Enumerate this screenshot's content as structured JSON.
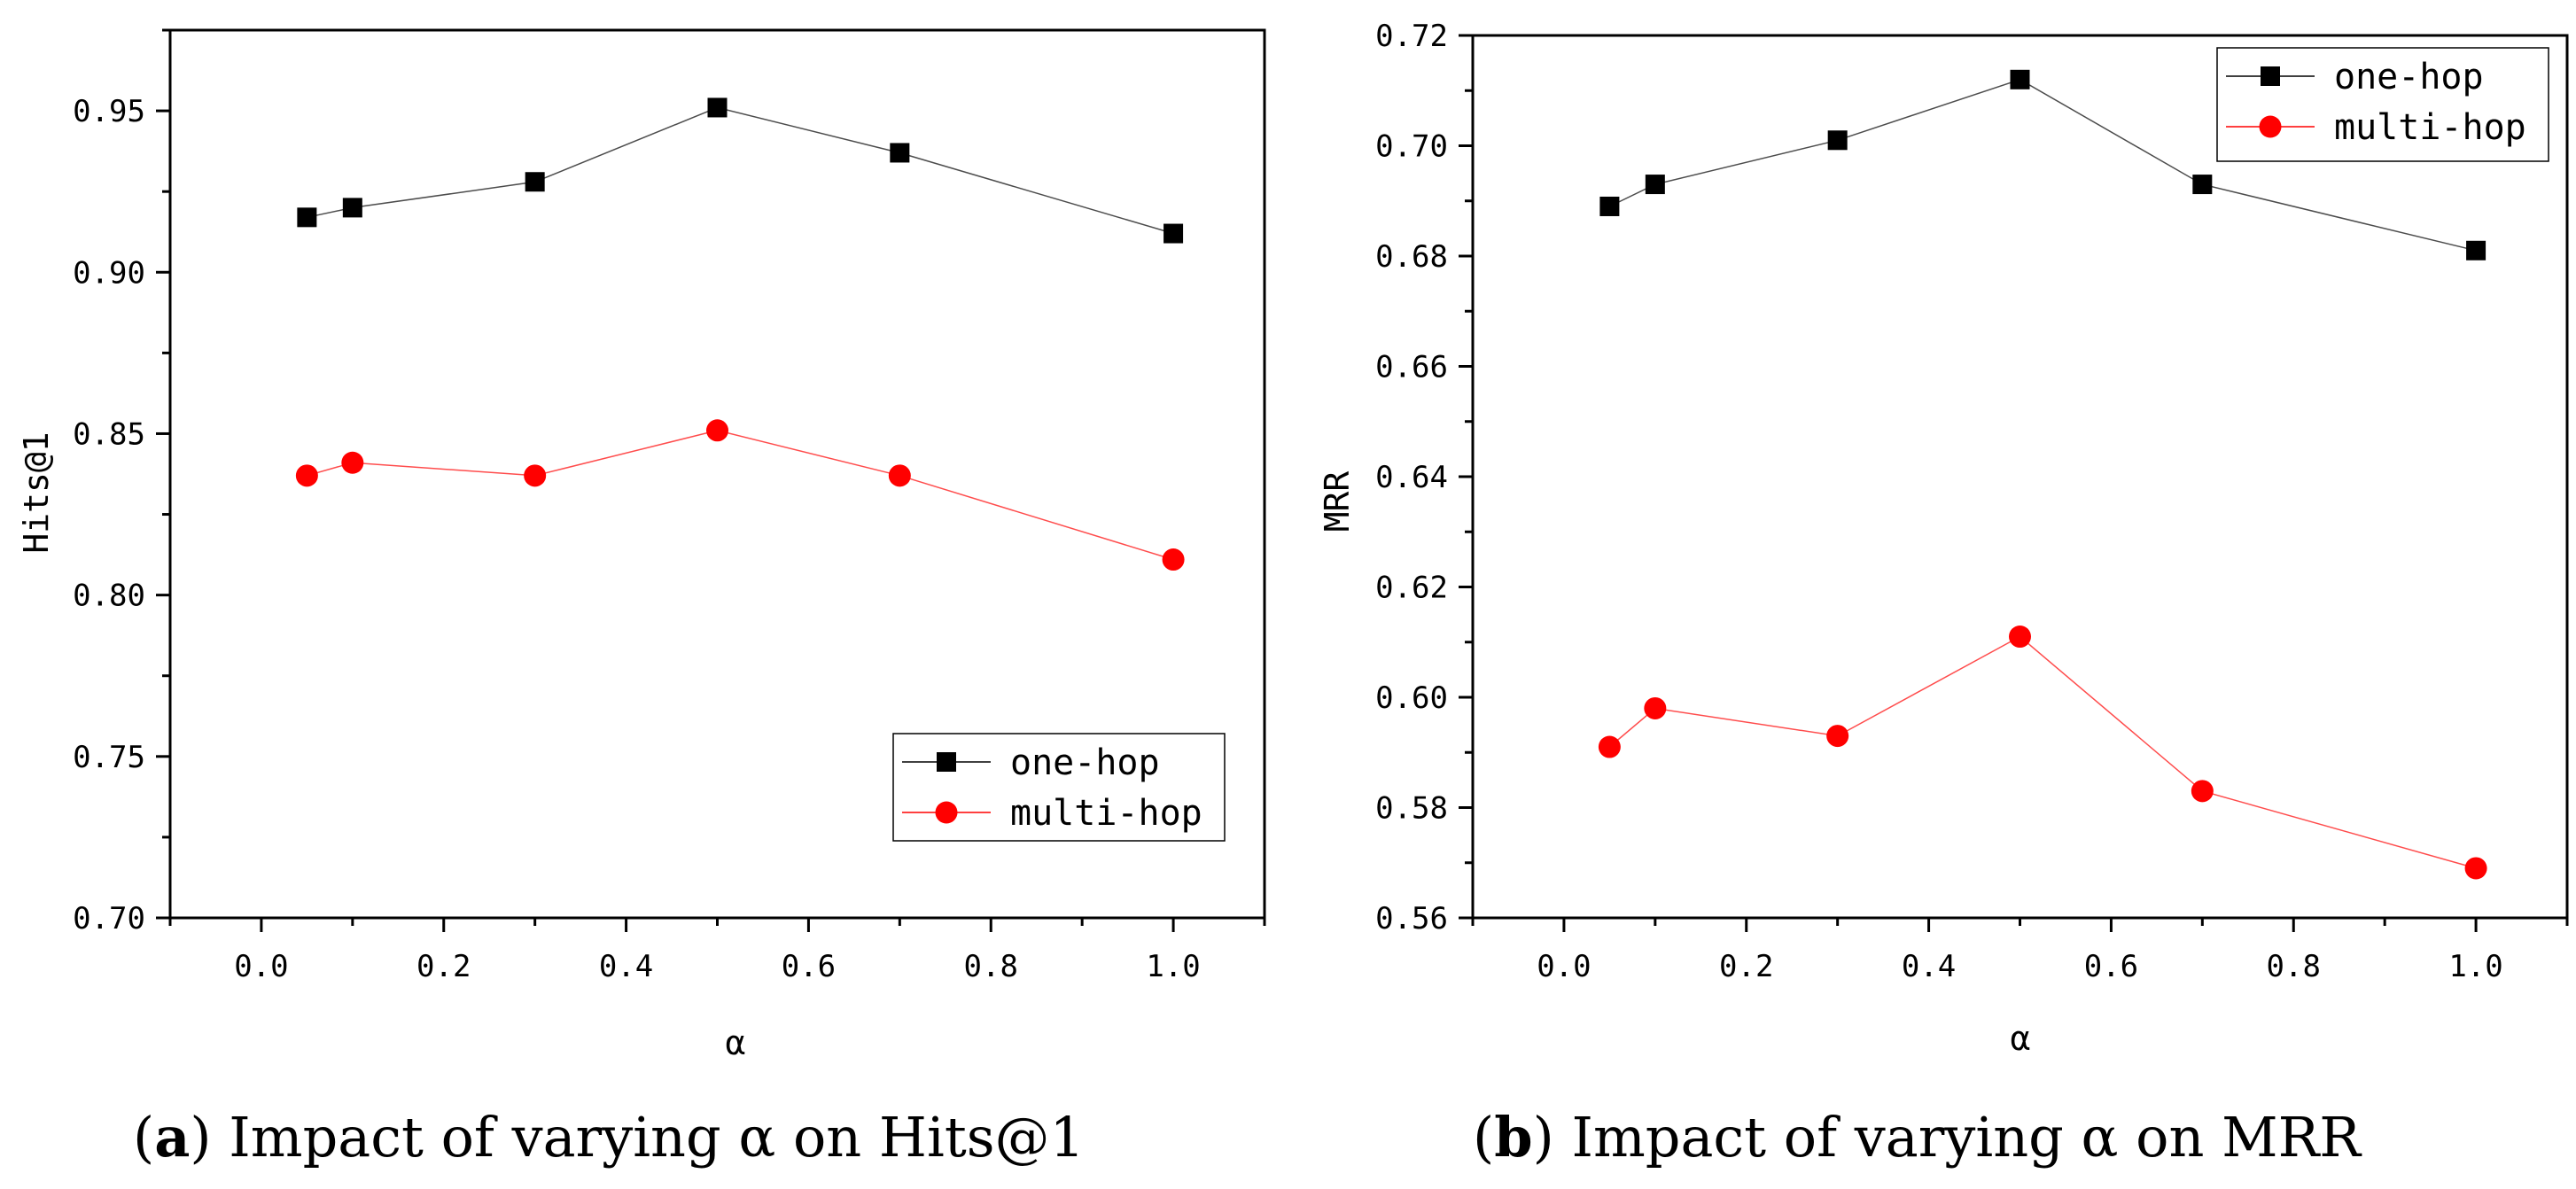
{
  "chart_data": [
    {
      "type": "line",
      "panel_letter": "a",
      "caption": " Impact of varying α on Hits@1",
      "xlabel": "α",
      "ylabel": "Hits@1",
      "xlim": [
        -0.1,
        1.1
      ],
      "ylim": [
        0.7,
        0.975
      ],
      "xticks": [
        0.0,
        0.2,
        0.4,
        0.6,
        0.8,
        1.0
      ],
      "xtick_labels": [
        "0.0",
        "0.2",
        "0.4",
        "0.6",
        "0.8",
        "1.0"
      ],
      "yticks": [
        0.7,
        0.75,
        0.8,
        0.85,
        0.9,
        0.95
      ],
      "ytick_labels": [
        "0.70",
        "0.75",
        "0.80",
        "0.85",
        "0.90",
        "0.95"
      ],
      "x": [
        0.05,
        0.1,
        0.3,
        0.5,
        0.7,
        1.0
      ],
      "series": [
        {
          "name": "one-hop",
          "color": "#000000",
          "marker": "square",
          "values": [
            0.917,
            0.92,
            0.928,
            0.951,
            0.937,
            0.912
          ]
        },
        {
          "name": "multi-hop",
          "color": "#ff0000",
          "marker": "circle",
          "values": [
            0.837,
            0.841,
            0.837,
            0.851,
            0.837,
            0.811
          ]
        }
      ],
      "legend": "bottom-right"
    },
    {
      "type": "line",
      "panel_letter": "b",
      "caption": " Impact of varying α on MRR",
      "xlabel": "α",
      "ylabel": "MRR",
      "xlim": [
        -0.1,
        1.1
      ],
      "ylim": [
        0.56,
        0.72
      ],
      "xticks": [
        0.0,
        0.2,
        0.4,
        0.6,
        0.8,
        1.0
      ],
      "xtick_labels": [
        "0.0",
        "0.2",
        "0.4",
        "0.6",
        "0.8",
        "1.0"
      ],
      "yticks": [
        0.56,
        0.58,
        0.6,
        0.62,
        0.64,
        0.66,
        0.68,
        0.7,
        0.72
      ],
      "ytick_labels": [
        "0.56",
        "0.58",
        "0.60",
        "0.62",
        "0.64",
        "0.66",
        "0.68",
        "0.70",
        "0.72"
      ],
      "x": [
        0.05,
        0.1,
        0.3,
        0.5,
        0.7,
        1.0
      ],
      "series": [
        {
          "name": "one-hop",
          "color": "#000000",
          "marker": "square",
          "values": [
            0.689,
            0.693,
            0.701,
            0.712,
            0.693,
            0.681
          ]
        },
        {
          "name": "multi-hop",
          "color": "#ff0000",
          "marker": "circle",
          "values": [
            0.591,
            0.598,
            0.593,
            0.611,
            0.583,
            0.569
          ]
        }
      ],
      "legend": "top-right"
    }
  ]
}
